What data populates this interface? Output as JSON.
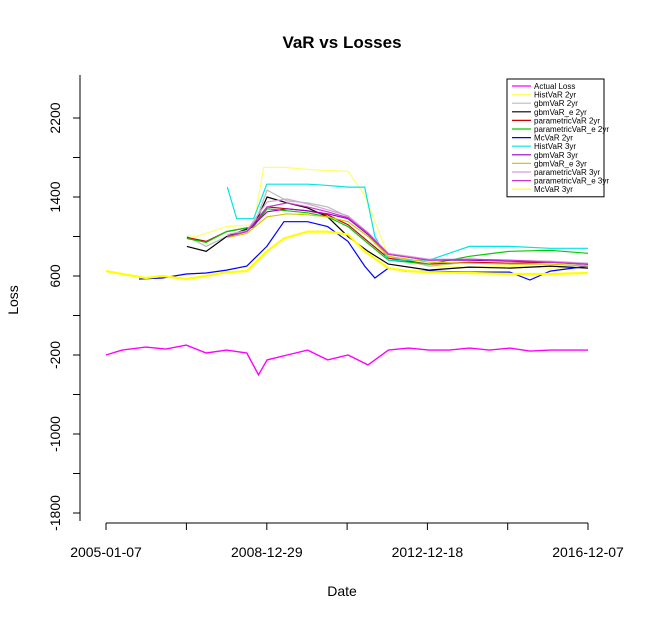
{
  "chart_data": {
    "type": "line",
    "title": "VaR vs Losses",
    "xlabel": "Date",
    "ylabel": "Loss",
    "xlim": [
      "2005-01-07",
      "2016-12-07"
    ],
    "ylim": [
      -1800,
      2200
    ],
    "x_ticks": [
      "2005-01-07",
      "2008-12-29",
      "2012-12-18",
      "2016-12-07"
    ],
    "y_ticks": [
      -1800,
      -1000,
      -200,
      600,
      1400,
      2200
    ],
    "legend_position": "top-right",
    "grid": false,
    "series": [
      {
        "name": "Actual Loss",
        "color": "#ff00ff",
        "x": [
          "2005-01-07",
          "2005-06-01",
          "2006-01-01",
          "2006-07-01",
          "2007-01-01",
          "2007-07-01",
          "2008-01-01",
          "2008-07-01",
          "2008-10-15",
          "2009-01-01",
          "2009-07-01",
          "2010-01-01",
          "2010-07-01",
          "2011-01-01",
          "2011-07-01",
          "2012-01-01",
          "2012-07-01",
          "2013-01-01",
          "2013-07-01",
          "2014-01-01",
          "2014-07-01",
          "2015-01-01",
          "2015-07-01",
          "2016-01-01",
          "2016-07-01",
          "2016-12-07"
        ],
        "values": [
          -200,
          -150,
          -120,
          -140,
          -100,
          -180,
          -150,
          -180,
          -400,
          -250,
          -200,
          -150,
          -250,
          -200,
          -300,
          -150,
          -130,
          -150,
          -150,
          -130,
          -150,
          -130,
          -160,
          -150,
          -150,
          -150
        ]
      },
      {
        "name": "HistVaR 2yr",
        "color": "#ffff66",
        "x": [
          "2007-01-07",
          "2007-04-01",
          "2008-01-01",
          "2008-09-01",
          "2008-12-01",
          "2009-06-01",
          "2010-01-01",
          "2010-06-01",
          "2011-01-01",
          "2011-06-01",
          "2012-01-01",
          "2012-06-01",
          "2013-01-01",
          "2014-01-01",
          "2015-01-01",
          "2016-01-01",
          "2016-12-07"
        ],
        "values": [
          1010,
          1000,
          1100,
          1120,
          1700,
          1700,
          1680,
          1670,
          1660,
          1420,
          800,
          750,
          700,
          690,
          700,
          680,
          690
        ]
      },
      {
        "name": "gbmVaR 2yr",
        "color": "#bbbbbb",
        "x": [
          "2007-01-07",
          "2007-07-01",
          "2008-01-01",
          "2008-09-01",
          "2009-01-01",
          "2009-07-01",
          "2010-01-01",
          "2010-07-01",
          "2011-01-01",
          "2011-07-01",
          "2012-01-01",
          "2013-01-01",
          "2014-01-01",
          "2015-01-01",
          "2016-01-01",
          "2016-12-07"
        ],
        "values": [
          1000,
          900,
          1000,
          1100,
          1470,
          1360,
          1340,
          1300,
          1200,
          1020,
          800,
          700,
          740,
          720,
          740,
          710
        ]
      },
      {
        "name": "gbmVaR_e 2yr",
        "color": "#000000",
        "x": [
          "2007-01-07",
          "2007-07-01",
          "2008-01-01",
          "2008-09-01",
          "2009-01-01",
          "2009-07-01",
          "2010-01-01",
          "2010-07-01",
          "2011-01-01",
          "2011-07-01",
          "2012-01-01",
          "2013-01-01",
          "2014-01-01",
          "2015-01-01",
          "2016-01-01",
          "2016-12-07"
        ],
        "values": [
          900,
          850,
          1000,
          1100,
          1400,
          1340,
          1290,
          1200,
          1000,
          850,
          720,
          660,
          690,
          680,
          700,
          680
        ]
      },
      {
        "name": "parametricVaR 2yr",
        "color": "#cc0000",
        "x": [
          "2007-01-07",
          "2007-07-01",
          "2008-01-01",
          "2008-09-01",
          "2009-01-01",
          "2009-07-01",
          "2010-01-01",
          "2010-07-01",
          "2011-01-01",
          "2011-07-01",
          "2012-01-01",
          "2013-01-01",
          "2014-01-01",
          "2015-01-01",
          "2016-01-01",
          "2016-12-07"
        ],
        "values": [
          990,
          950,
          1050,
          1100,
          1300,
          1280,
          1260,
          1220,
          1120,
          950,
          780,
          720,
          740,
          730,
          740,
          720
        ]
      },
      {
        "name": "parametricVaR_e 2yr",
        "color": "#00cc00",
        "x": [
          "2007-01-07",
          "2007-07-01",
          "2008-01-01",
          "2008-09-01",
          "2009-01-01",
          "2009-07-01",
          "2010-01-01",
          "2010-07-01",
          "2011-01-01",
          "2011-07-01",
          "2012-01-01",
          "2013-01-01",
          "2014-01-01",
          "2015-01-01",
          "2016-01-01",
          "2016-12-07"
        ],
        "values": [
          980,
          940,
          1050,
          1100,
          1280,
          1260,
          1240,
          1200,
          1100,
          930,
          760,
          720,
          800,
          850,
          860,
          830
        ]
      },
      {
        "name": "McVaR 2yr",
        "color": "#0000ff",
        "x": [
          "2005-11-01",
          "2006-06-01",
          "2007-01-01",
          "2007-07-01",
          "2008-01-01",
          "2008-07-01",
          "2008-12-29",
          "2009-06-01",
          "2010-01-01",
          "2010-07-01",
          "2011-01-01",
          "2011-06-01",
          "2011-09-01",
          "2012-01-01",
          "2012-06-01",
          "2013-01-01",
          "2014-01-01",
          "2015-01-01",
          "2015-07-01",
          "2016-01-01",
          "2016-12-07"
        ],
        "values": [
          570,
          580,
          620,
          630,
          660,
          700,
          900,
          1150,
          1150,
          1100,
          950,
          700,
          580,
          680,
          650,
          650,
          640,
          640,
          560,
          650,
          700
        ]
      },
      {
        "name": "HistVaR 3yr",
        "color": "#00e5e5",
        "x": [
          "2008-01-07",
          "2008-04-01",
          "2008-09-01",
          "2008-12-29",
          "2009-06-01",
          "2010-01-01",
          "2010-06-01",
          "2011-01-01",
          "2011-06-01",
          "2011-09-01",
          "2012-01-01",
          "2013-01-01",
          "2014-01-01",
          "2015-01-01",
          "2016-01-01",
          "2016-12-07"
        ],
        "values": [
          1500,
          1180,
          1180,
          1530,
          1530,
          1530,
          1520,
          1500,
          1500,
          1000,
          760,
          760,
          900,
          900,
          880,
          880
        ]
      },
      {
        "name": "gbmVaR 3yr",
        "color": "#9900cc",
        "x": [
          "2008-01-07",
          "2008-07-01",
          "2009-01-01",
          "2009-07-01",
          "2010-01-01",
          "2010-07-01",
          "2011-01-01",
          "2011-07-01",
          "2012-01-01",
          "2013-01-01",
          "2014-01-01",
          "2015-01-01",
          "2016-01-01",
          "2016-12-07"
        ],
        "values": [
          1000,
          1050,
          1250,
          1280,
          1260,
          1230,
          1180,
          1020,
          820,
          760,
          760,
          750,
          740,
          720
        ]
      },
      {
        "name": "gbmVaR_e 3yr",
        "color": "#cccc00",
        "x": [
          "2008-01-07",
          "2008-07-01",
          "2009-01-01",
          "2009-07-01",
          "2010-01-01",
          "2010-07-01",
          "2011-01-01",
          "2011-07-01",
          "2012-01-01",
          "2013-01-01",
          "2014-01-01",
          "2015-01-01",
          "2016-01-01",
          "2016-12-07"
        ],
        "values": [
          990,
          1030,
          1200,
          1230,
          1220,
          1200,
          1150,
          1000,
          800,
          740,
          730,
          720,
          720,
          700
        ]
      },
      {
        "name": "parametricVaR 3yr",
        "color": "#d7a0d7",
        "x": [
          "2008-01-07",
          "2008-07-01",
          "2009-01-01",
          "2009-07-01",
          "2010-01-01",
          "2010-07-01",
          "2011-01-01",
          "2011-07-01",
          "2012-01-01",
          "2013-01-01",
          "2014-01-01",
          "2015-01-01",
          "2016-01-01",
          "2016-12-07"
        ],
        "values": [
          1020,
          1060,
          1350,
          1380,
          1330,
          1270,
          1210,
          1040,
          830,
          770,
          770,
          760,
          750,
          730
        ]
      },
      {
        "name": "parametricVaR_e 3yr",
        "color": "#cc33cc",
        "x": [
          "2008-01-07",
          "2008-07-01",
          "2009-01-01",
          "2009-07-01",
          "2010-01-01",
          "2010-07-01",
          "2011-01-01",
          "2011-07-01",
          "2012-01-01",
          "2013-01-01",
          "2014-01-01",
          "2015-01-01",
          "2016-01-01",
          "2016-12-07"
        ],
        "values": [
          1000,
          1050,
          1300,
          1340,
          1300,
          1250,
          1190,
          1030,
          820,
          760,
          770,
          760,
          740,
          720
        ]
      },
      {
        "name": "McVaR 3yr",
        "color": "#ffff00",
        "x": [
          "2005-01-07",
          "2005-06-01",
          "2006-01-01",
          "2006-06-01",
          "2007-01-01",
          "2007-07-01",
          "2008-01-01",
          "2008-07-01",
          "2008-12-29",
          "2009-06-01",
          "2010-01-01",
          "2010-07-01",
          "2011-01-01",
          "2011-06-01",
          "2012-01-01",
          "2012-07-01",
          "2013-01-01",
          "2014-01-01",
          "2015-01-01",
          "2016-01-01",
          "2016-12-07"
        ],
        "values": [
          650,
          620,
          580,
          600,
          570,
          600,
          640,
          650,
          850,
          980,
          1050,
          1050,
          1020,
          850,
          680,
          650,
          640,
          630,
          620,
          620,
          630
        ]
      }
    ]
  }
}
